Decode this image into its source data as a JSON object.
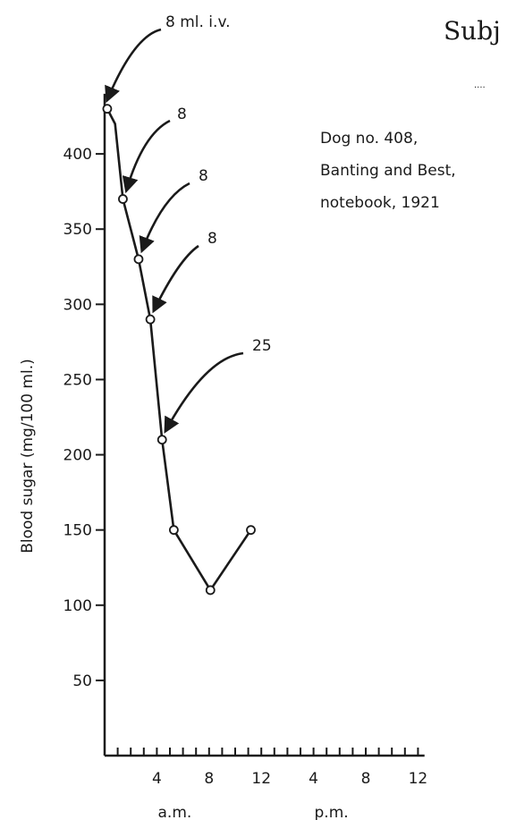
{
  "header_fragment": "Subj",
  "header_dots": "....",
  "annotation_block": {
    "line1": "Dog no. 408,",
    "line2": "Banting and Best,",
    "line3": "notebook, 1921"
  },
  "chart_data": {
    "type": "line",
    "ylabel": "Blood sugar  (mg/100 ml.)",
    "yticks": [
      50,
      100,
      150,
      200,
      250,
      300,
      350,
      400
    ],
    "ylim": [
      0,
      440
    ],
    "xtick_labels": [
      {
        "label": "4",
        "hour": 4
      },
      {
        "label": "8",
        "hour": 8
      },
      {
        "label": "12",
        "hour": 12
      },
      {
        "label": "4",
        "hour": 16
      },
      {
        "label": "8",
        "hour": 20
      },
      {
        "label": "12",
        "hour": 24
      }
    ],
    "xlim": [
      0,
      24.5
    ],
    "period_labels": [
      {
        "label": "a.m.",
        "hour": 4
      },
      {
        "label": "p.m.",
        "hour": 16
      }
    ],
    "points": [
      {
        "x": 0.2,
        "y": 430
      },
      {
        "x": 0.8,
        "y": 420
      },
      {
        "x": 1.4,
        "y": 370
      },
      {
        "x": 2.6,
        "y": 330
      },
      {
        "x": 3.5,
        "y": 290
      },
      {
        "x": 4.4,
        "y": 210
      },
      {
        "x": 5.3,
        "y": 150
      },
      {
        "x": 8.1,
        "y": 110
      },
      {
        "x": 11.2,
        "y": 150
      }
    ],
    "markers": [
      {
        "x": 0.2,
        "y": 430
      },
      {
        "x": 1.4,
        "y": 370
      },
      {
        "x": 2.6,
        "y": 330
      },
      {
        "x": 3.5,
        "y": 290
      },
      {
        "x": 4.4,
        "y": 210
      },
      {
        "x": 5.3,
        "y": 150
      },
      {
        "x": 8.1,
        "y": 110
      },
      {
        "x": 11.2,
        "y": 150
      }
    ],
    "injections": [
      {
        "label": "8 ml. i.v.",
        "x": 0.2,
        "y": 430
      },
      {
        "label": "8",
        "x": 1.4,
        "y": 370
      },
      {
        "label": "8",
        "x": 2.6,
        "y": 330
      },
      {
        "label": "8",
        "x": 3.5,
        "y": 290
      },
      {
        "label": "25",
        "x": 4.4,
        "y": 210
      }
    ]
  }
}
